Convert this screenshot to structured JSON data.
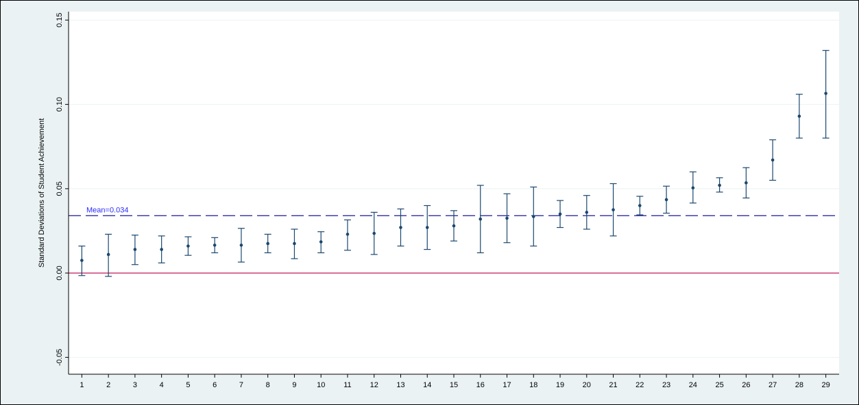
{
  "chart_data": {
    "type": "scatter",
    "title": "",
    "xlabel": "",
    "ylabel": "Standard Deviations of Student Achievement",
    "xlim": [
      0.5,
      29.5
    ],
    "ylim": [
      -0.06,
      0.155
    ],
    "grid": true,
    "legend": "none",
    "x_ticks": [
      1,
      2,
      3,
      4,
      5,
      6,
      7,
      8,
      9,
      10,
      11,
      12,
      13,
      14,
      15,
      16,
      17,
      18,
      19,
      20,
      21,
      22,
      23,
      24,
      25,
      26,
      27,
      28,
      29
    ],
    "y_ticks": [
      {
        "value": -0.05,
        "label": "-0.05"
      },
      {
        "value": 0.0,
        "label": "0.00"
      },
      {
        "value": 0.05,
        "label": "0.05"
      },
      {
        "value": 0.1,
        "label": "0.10"
      },
      {
        "value": 0.15,
        "label": "0.15"
      }
    ],
    "points": [
      {
        "x": 1,
        "y": 0.0075,
        "lo": -0.0015,
        "hi": 0.016
      },
      {
        "x": 2,
        "y": 0.011,
        "lo": -0.002,
        "hi": 0.023
      },
      {
        "x": 3,
        "y": 0.014,
        "lo": 0.005,
        "hi": 0.0225
      },
      {
        "x": 4,
        "y": 0.014,
        "lo": 0.006,
        "hi": 0.022
      },
      {
        "x": 5,
        "y": 0.016,
        "lo": 0.0105,
        "hi": 0.0215
      },
      {
        "x": 6,
        "y": 0.0165,
        "lo": 0.012,
        "hi": 0.021
      },
      {
        "x": 7,
        "y": 0.0165,
        "lo": 0.0065,
        "hi": 0.0265
      },
      {
        "x": 8,
        "y": 0.0175,
        "lo": 0.012,
        "hi": 0.023
      },
      {
        "x": 9,
        "y": 0.0175,
        "lo": 0.0085,
        "hi": 0.026
      },
      {
        "x": 10,
        "y": 0.0185,
        "lo": 0.012,
        "hi": 0.0245
      },
      {
        "x": 11,
        "y": 0.023,
        "lo": 0.0135,
        "hi": 0.0315
      },
      {
        "x": 12,
        "y": 0.0235,
        "lo": 0.011,
        "hi": 0.036
      },
      {
        "x": 13,
        "y": 0.027,
        "lo": 0.016,
        "hi": 0.038
      },
      {
        "x": 14,
        "y": 0.027,
        "lo": 0.014,
        "hi": 0.04
      },
      {
        "x": 15,
        "y": 0.028,
        "lo": 0.019,
        "hi": 0.037
      },
      {
        "x": 16,
        "y": 0.032,
        "lo": 0.012,
        "hi": 0.052
      },
      {
        "x": 17,
        "y": 0.0325,
        "lo": 0.018,
        "hi": 0.047
      },
      {
        "x": 18,
        "y": 0.0335,
        "lo": 0.016,
        "hi": 0.051
      },
      {
        "x": 19,
        "y": 0.035,
        "lo": 0.027,
        "hi": 0.043
      },
      {
        "x": 20,
        "y": 0.036,
        "lo": 0.026,
        "hi": 0.046
      },
      {
        "x": 21,
        "y": 0.0375,
        "lo": 0.022,
        "hi": 0.053
      },
      {
        "x": 22,
        "y": 0.04,
        "lo": 0.0345,
        "hi": 0.0455
      },
      {
        "x": 23,
        "y": 0.0435,
        "lo": 0.0355,
        "hi": 0.0515
      },
      {
        "x": 24,
        "y": 0.0505,
        "lo": 0.0415,
        "hi": 0.06
      },
      {
        "x": 25,
        "y": 0.052,
        "lo": 0.048,
        "hi": 0.0565
      },
      {
        "x": 26,
        "y": 0.0535,
        "lo": 0.0445,
        "hi": 0.0625
      },
      {
        "x": 27,
        "y": 0.067,
        "lo": 0.055,
        "hi": 0.079
      },
      {
        "x": 28,
        "y": 0.093,
        "lo": 0.08,
        "hi": 0.106
      },
      {
        "x": 29,
        "y": 0.1065,
        "lo": 0.08,
        "hi": 0.132
      }
    ],
    "reference_lines": [
      {
        "value": 0.034,
        "label": "Mean=0.034",
        "color": "#1a1aa0",
        "style": "dashed"
      },
      {
        "value": 0.0,
        "label": "",
        "color": "#c2185b",
        "style": "solid"
      }
    ],
    "colors": {
      "outer_background": "#eaf2f3",
      "plot_background": "#ffffff",
      "grid": "#eaf2f3",
      "marker": "#1a476f",
      "mean_label": "#2a2aff"
    }
  }
}
